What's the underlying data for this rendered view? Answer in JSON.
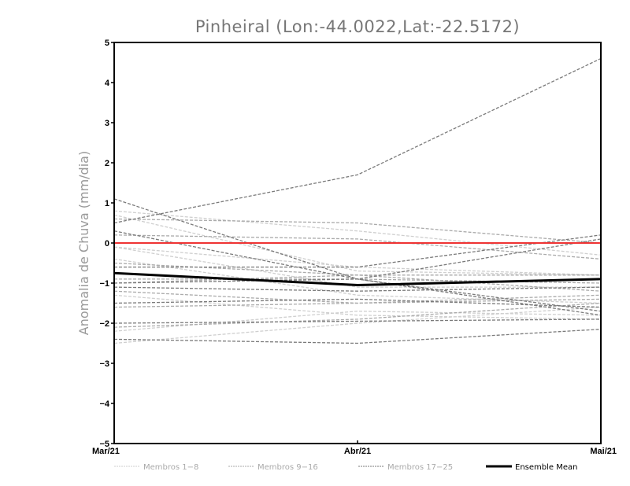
{
  "chart_data": {
    "type": "line",
    "title": "Pinheiral (Lon:-44.0022,Lat:-22.5172)",
    "xlabel": "",
    "ylabel": "Anomalia de Chuva (mm/dia)",
    "categories": [
      "Mar/21",
      "Abr/21",
      "Mai/21"
    ],
    "ylim": [
      -5,
      5
    ],
    "yticks": [
      "5",
      "4",
      "3",
      "2",
      "1",
      "0",
      "−1",
      "−2",
      "−3",
      "−4",
      "−5"
    ],
    "grid": false,
    "reference_line": {
      "value": 0,
      "color": "#ee3333"
    },
    "legend_position": "bottom",
    "groups": [
      {
        "name": "Membros 1-8",
        "color": "#cfcfcf"
      },
      {
        "name": "Membros 9-16",
        "color": "#aaaaaa"
      },
      {
        "name": "Membros 17-25",
        "color": "#7a7a7a"
      }
    ],
    "series": [
      {
        "group": 0,
        "values": [
          0.8,
          0.3,
          -0.3
        ]
      },
      {
        "group": 0,
        "values": [
          0.7,
          -0.7,
          -0.8
        ]
      },
      {
        "group": 0,
        "values": [
          -0.1,
          -0.6,
          -0.8
        ]
      },
      {
        "group": 0,
        "values": [
          -0.4,
          -1.3,
          -1.5
        ]
      },
      {
        "group": 0,
        "values": [
          -1.3,
          -1.8,
          -1.9
        ]
      },
      {
        "group": 0,
        "values": [
          -2.2,
          -1.7,
          -1.8
        ]
      },
      {
        "group": 0,
        "values": [
          -2.5,
          -2.0,
          -1.6
        ]
      },
      {
        "group": 0,
        "values": [
          -0.1,
          -1.1,
          -1.1
        ]
      },
      {
        "group": 1,
        "values": [
          0.6,
          0.5,
          0.0
        ]
      },
      {
        "group": 1,
        "values": [
          0.2,
          0.1,
          -0.4
        ]
      },
      {
        "group": 1,
        "values": [
          -0.5,
          -0.8,
          -0.8
        ]
      },
      {
        "group": 1,
        "values": [
          -0.9,
          -0.9,
          -1.0
        ]
      },
      {
        "group": 1,
        "values": [
          -1.2,
          -1.5,
          -1.3
        ]
      },
      {
        "group": 1,
        "values": [
          -1.6,
          -1.5,
          -1.4
        ]
      },
      {
        "group": 1,
        "values": [
          -2.1,
          -1.9,
          -1.5
        ]
      },
      {
        "group": 1,
        "values": [
          -1.0,
          -0.8,
          -1.2
        ]
      },
      {
        "group": 2,
        "values": [
          0.5,
          1.7,
          4.6
        ]
      },
      {
        "group": 2,
        "values": [
          1.1,
          -0.9,
          -1.8
        ]
      },
      {
        "group": 2,
        "values": [
          0.3,
          -0.9,
          -1.7
        ]
      },
      {
        "group": 2,
        "values": [
          -0.6,
          -0.6,
          0.2
        ]
      },
      {
        "group": 2,
        "values": [
          -1.0,
          -0.9,
          0.1
        ]
      },
      {
        "group": 2,
        "values": [
          -1.1,
          -1.2,
          -1.1
        ]
      },
      {
        "group": 2,
        "values": [
          -1.5,
          -1.4,
          -1.6
        ]
      },
      {
        "group": 2,
        "values": [
          -2.0,
          -1.95,
          -1.9
        ]
      },
      {
        "group": 2,
        "values": [
          -2.4,
          -2.5,
          -2.15
        ]
      }
    ],
    "ensemble_mean": {
      "name": "Ensemble Mean",
      "color": "#000000",
      "values": [
        -0.75,
        -1.05,
        -0.9
      ]
    }
  }
}
